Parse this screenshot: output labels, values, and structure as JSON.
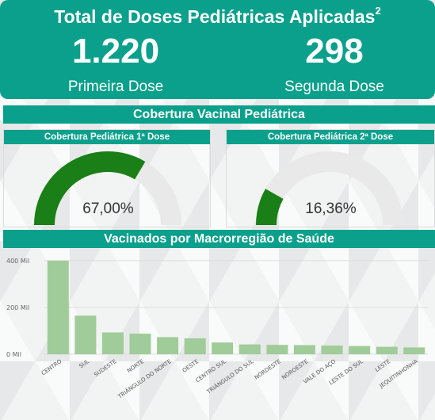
{
  "header": {
    "title": "Total de Doses Pediátricas Aplicadas",
    "superscript": "2",
    "first_value": "1.220",
    "first_label": "Primeira Dose",
    "second_value": "298",
    "second_label": "Segunda Dose"
  },
  "coverage": {
    "section_title": "Cobertura Vacinal Pediátrica",
    "first": {
      "title": "Cobertura Pediátrica 1ª Dose",
      "value_text": "67,00%",
      "fraction": 0.67
    },
    "second": {
      "title": "Cobertura Pediátrica 2ª Dose",
      "value_text": "16,36%",
      "fraction": 0.1636
    }
  },
  "colors": {
    "teal": "#0aa08c",
    "gauge_fill": "#1a7f16",
    "gauge_track": "#e9e9e9",
    "bar": "#9fcc98"
  },
  "macro": {
    "section_title": "Vacinados por Macrorregião de Saúde"
  },
  "chart_data": {
    "type": "bar",
    "categories": [
      "CENTRO",
      "SUL",
      "SUDESTE",
      "NORTE",
      "TRIÂNGULO DO NORTE",
      "OESTE",
      "CENTRO SUL",
      "TRIÂNGULO DO SUL",
      "NORDESTE",
      "NOROESTE",
      "VALE DO AÇO",
      "LESTE DO SUL",
      "LESTE",
      "JEQUITINHONHA"
    ],
    "values": [
      400000,
      165000,
      93000,
      88000,
      73000,
      68000,
      50000,
      42000,
      40000,
      39000,
      37000,
      35000,
      32000,
      29000
    ],
    "yticks": [
      "0 Mil",
      "200 Mil",
      "400 Mil"
    ],
    "ylim": [
      0,
      420000
    ],
    "grid": true
  }
}
